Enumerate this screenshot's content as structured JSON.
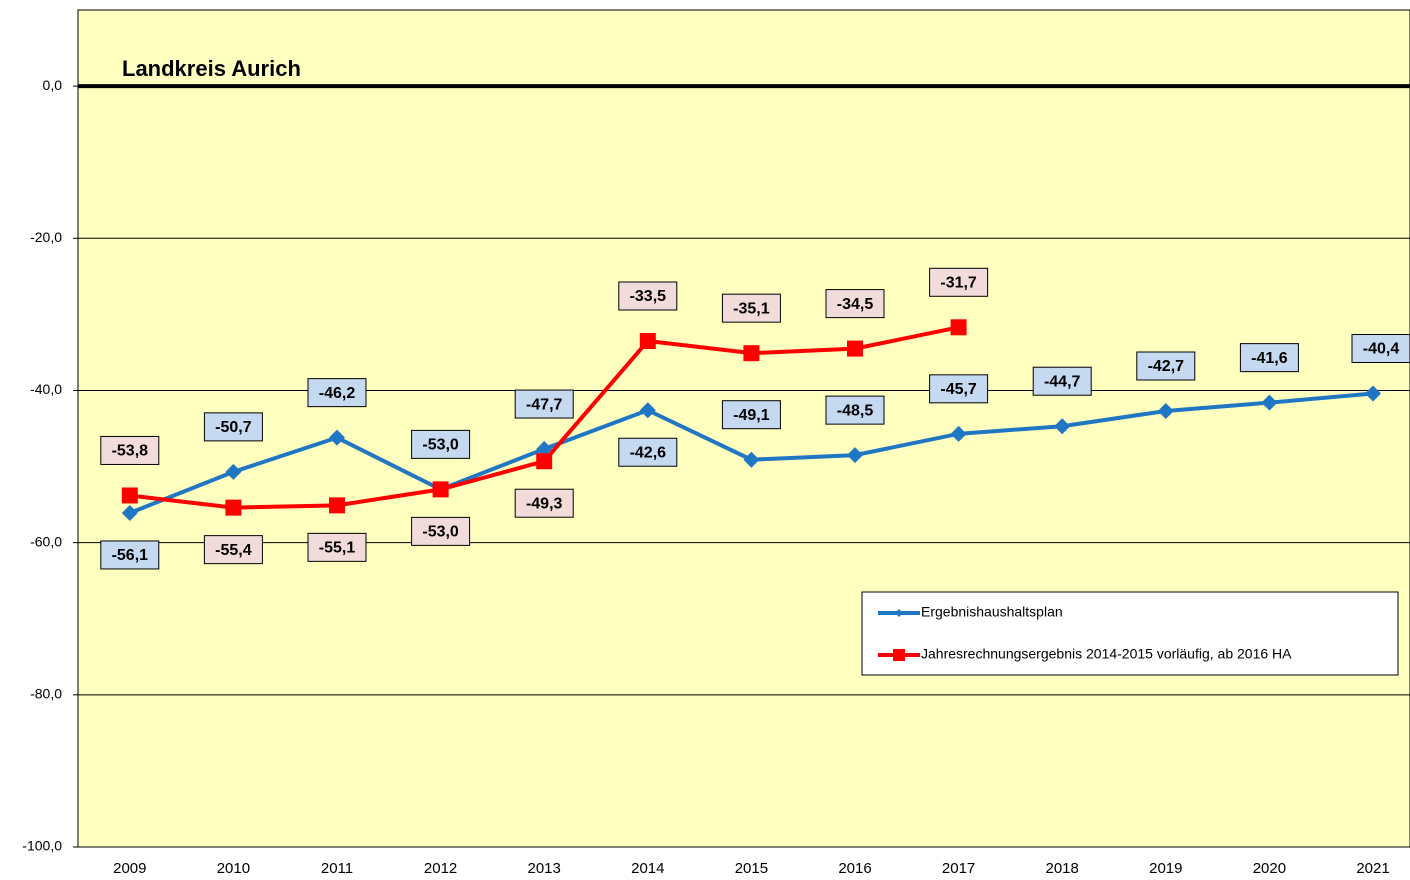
{
  "chart_data": {
    "type": "line",
    "title": "Landkreis Aurich",
    "categories": [
      "2009",
      "2010",
      "2011",
      "2012",
      "2013",
      "2014",
      "2015",
      "2016",
      "2017",
      "2018",
      "2019",
      "2020",
      "2021"
    ],
    "series": [
      {
        "name": "Ergebnishaushaltsplan",
        "color": "#1f77c4",
        "values": [
          -56.1,
          -50.7,
          -46.2,
          -53.0,
          -47.7,
          -42.6,
          -49.1,
          -48.5,
          -45.7,
          -44.7,
          -42.7,
          -41.6,
          -40.4
        ],
        "value_labels": [
          "-56,1",
          "-50,7",
          "-46,2",
          "-53,0",
          "-47,7",
          "-42,6",
          "-49,1",
          "-48,5",
          "-45,7",
          "-44,7",
          "-42,7",
          "-41,6",
          "-40,4"
        ]
      },
      {
        "name": "Jahresrechnungsergebnis 2014-2015 vorläufig, ab 2016 HA",
        "color": "#ff0000",
        "values": [
          -53.8,
          -55.4,
          -55.1,
          -53.0,
          -49.3,
          -33.5,
          -35.1,
          -34.5,
          -31.7,
          null,
          null,
          null,
          null
        ],
        "value_labels": [
          "-53,8",
          "-55,4",
          "-55,1",
          "-53,0",
          "-49,3",
          "-33,5",
          "-35,1",
          "-34,5",
          "-31,7",
          null,
          null,
          null,
          null
        ]
      }
    ],
    "ylim": [
      -100,
      10
    ],
    "yticks": [
      {
        "value": 0,
        "label": "0,0"
      },
      {
        "value": -20,
        "label": "-20,0"
      },
      {
        "value": -40,
        "label": "-40,0"
      },
      {
        "value": -60,
        "label": "-60,0"
      },
      {
        "value": -80,
        "label": "-80,0"
      },
      {
        "value": -100,
        "label": "-100,0"
      }
    ],
    "grid": true
  }
}
